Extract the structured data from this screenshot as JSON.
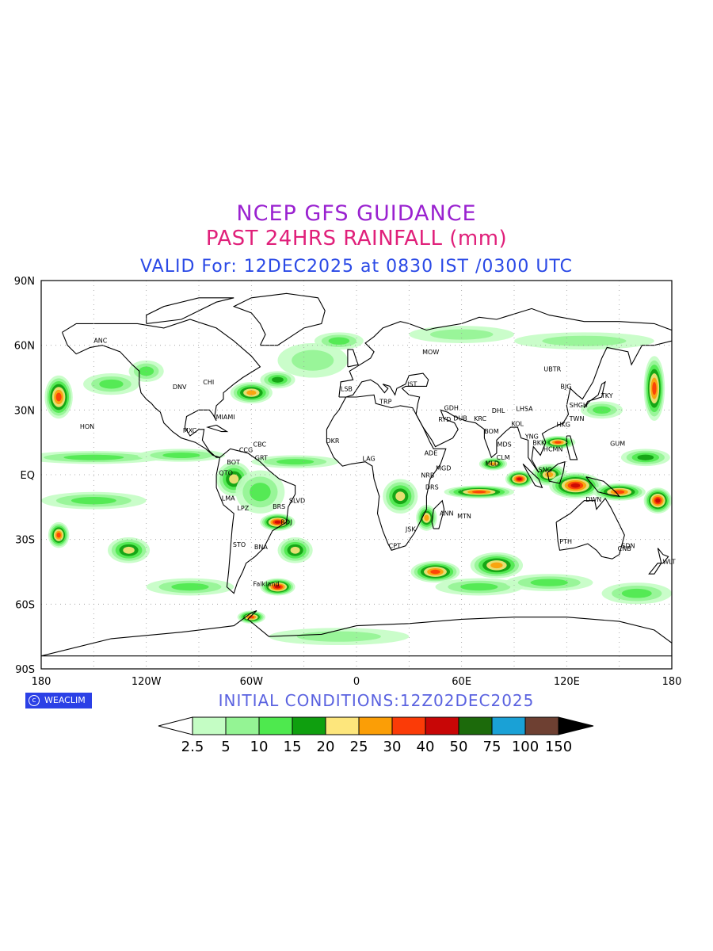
{
  "title": {
    "line1": "NCEP GFS GUIDANCE",
    "line2": "PAST 24HRS RAINFALL (mm)",
    "line3": "VALID For: 12DEC2025 at 0830 IST /0300 UTC"
  },
  "initial_conditions": "INITIAL  CONDITIONS:12Z02DEC2025",
  "badge": {
    "label": "WEACLIM",
    "icon": "copyright-icon"
  },
  "axes": {
    "lat_labels": [
      "90N",
      "60N",
      "30N",
      "EQ",
      "30S",
      "60S",
      "90S"
    ],
    "lat_values": [
      90,
      60,
      30,
      0,
      -30,
      -60,
      -90
    ],
    "lon_labels": [
      "180",
      "120W",
      "60W",
      "0",
      "60E",
      "120E",
      "180"
    ],
    "lon_values": [
      -180,
      -120,
      -60,
      0,
      60,
      120,
      180
    ]
  },
  "legend": {
    "labels": [
      "2.5",
      "5",
      "10",
      "15",
      "20",
      "25",
      "30",
      "40",
      "50",
      "75",
      "100",
      "150"
    ],
    "colors": [
      "#c4fdc4",
      "#94f494",
      "#4ee94e",
      "#0f9f0f",
      "#fde67c",
      "#fb9e06",
      "#fb3b07",
      "#c80606",
      "#1c6a0b",
      "#1aa1d6",
      "#6e4032"
    ],
    "low_color": "#ffffff",
    "high_color": "#000000"
  },
  "stations": [
    {
      "name": "ANC",
      "lon": -150,
      "lat": 61.2
    },
    {
      "name": "HON",
      "lon": -157.9,
      "lat": 21.3
    },
    {
      "name": "MXC",
      "lon": -99.1,
      "lat": 19.4
    },
    {
      "name": "DNV",
      "lon": -105,
      "lat": 39.7
    },
    {
      "name": "CHI",
      "lon": -87.6,
      "lat": 41.9
    },
    {
      "name": "MIAMI",
      "lon": -80.2,
      "lat": 25.8
    },
    {
      "name": "CCG",
      "lon": -67,
      "lat": 10.5
    },
    {
      "name": "CBC",
      "lon": -59,
      "lat": 13
    },
    {
      "name": "BOT",
      "lon": -74,
      "lat": 4.7
    },
    {
      "name": "GRT",
      "lon": -58,
      "lat": 6.8
    },
    {
      "name": "QTO",
      "lon": -78.5,
      "lat": -0.2
    },
    {
      "name": "LMA",
      "lon": -77,
      "lat": -12
    },
    {
      "name": "LPZ",
      "lon": -68.1,
      "lat": -16.5
    },
    {
      "name": "BRS",
      "lon": -47.9,
      "lat": -15.8
    },
    {
      "name": "SLVD",
      "lon": -38.5,
      "lat": -13
    },
    {
      "name": "RDJ",
      "lon": -43.2,
      "lat": -22.9
    },
    {
      "name": "STO",
      "lon": -70.6,
      "lat": -33.4
    },
    {
      "name": "BNA",
      "lon": -58.4,
      "lat": -34.6
    },
    {
      "name": "Falkland",
      "lon": -59,
      "lat": -51.7
    },
    {
      "name": "MOW",
      "lon": 37.6,
      "lat": 55.8
    },
    {
      "name": "LSB",
      "lon": -9.1,
      "lat": 38.7
    },
    {
      "name": "TRP",
      "lon": 13.2,
      "lat": 32.9
    },
    {
      "name": "IST",
      "lon": 29,
      "lat": 41
    },
    {
      "name": "GDH",
      "lon": 50,
      "lat": 30
    },
    {
      "name": "RYD",
      "lon": 46.7,
      "lat": 24.7
    },
    {
      "name": "DUB",
      "lon": 55.3,
      "lat": 25.2
    },
    {
      "name": "KRC",
      "lon": 67,
      "lat": 24.9
    },
    {
      "name": "DHL",
      "lon": 77.2,
      "lat": 28.6
    },
    {
      "name": "KOL",
      "lon": 88.4,
      "lat": 22.6
    },
    {
      "name": "BOM",
      "lon": 72.9,
      "lat": 19.1
    },
    {
      "name": "MDS",
      "lon": 80.3,
      "lat": 13.1
    },
    {
      "name": "CLM",
      "lon": 79.9,
      "lat": 6.9
    },
    {
      "name": "MLD",
      "lon": 73.5,
      "lat": 4.2
    },
    {
      "name": "LHSA",
      "lon": 91.1,
      "lat": 29.6
    },
    {
      "name": "YNG",
      "lon": 96.2,
      "lat": 16.8
    },
    {
      "name": "BKK",
      "lon": 100.5,
      "lat": 13.8
    },
    {
      "name": "HCMN",
      "lon": 106.7,
      "lat": 10.8
    },
    {
      "name": "UBTR",
      "lon": 106.9,
      "lat": 47.9
    },
    {
      "name": "BJG",
      "lon": 116.4,
      "lat": 39.9
    },
    {
      "name": "SHGH",
      "lon": 121.5,
      "lat": 31.2
    },
    {
      "name": "HKG",
      "lon": 114.2,
      "lat": 22.3
    },
    {
      "name": "TWN",
      "lon": 121.5,
      "lat": 25
    },
    {
      "name": "TKY",
      "lon": 139.7,
      "lat": 35.7
    },
    {
      "name": "GUM",
      "lon": 144.8,
      "lat": 13.4
    },
    {
      "name": "SNG",
      "lon": 103.8,
      "lat": 1.3
    },
    {
      "name": "DWN",
      "lon": 130.8,
      "lat": -12.5
    },
    {
      "name": "PTH",
      "lon": 115.9,
      "lat": -32
    },
    {
      "name": "SDN",
      "lon": 151.2,
      "lat": -33.9
    },
    {
      "name": "CNB",
      "lon": 149.1,
      "lat": -35.3
    },
    {
      "name": "WLT",
      "lon": 174.8,
      "lat": -41.3
    },
    {
      "name": "ADE",
      "lon": 38.7,
      "lat": 9
    },
    {
      "name": "MGD",
      "lon": 45.3,
      "lat": 2
    },
    {
      "name": "NRB",
      "lon": 36.8,
      "lat": -1.3
    },
    {
      "name": "DRS",
      "lon": 39.3,
      "lat": -6.8
    },
    {
      "name": "ANN",
      "lon": 47.5,
      "lat": -18.9
    },
    {
      "name": "MTN",
      "lon": 57.5,
      "lat": -20.2
    },
    {
      "name": "JSK",
      "lon": 28,
      "lat": -26.2
    },
    {
      "name": "CPT",
      "lon": 18.4,
      "lat": -33.9
    },
    {
      "name": "DKR",
      "lon": -17.4,
      "lat": 14.7
    },
    {
      "name": "LAG",
      "lon": 3.4,
      "lat": 6.5
    }
  ],
  "rain_areas": [
    {
      "lon": -170,
      "lat": 36,
      "rx": 8,
      "ry": 10,
      "lvl": 6
    },
    {
      "lon": -140,
      "lat": 42,
      "rx": 16,
      "ry": 5,
      "lvl": 2
    },
    {
      "lon": -120,
      "lat": 48,
      "rx": 10,
      "ry": 5,
      "lvl": 2
    },
    {
      "lon": -60,
      "lat": 38,
      "rx": 12,
      "ry": 5,
      "lvl": 5
    },
    {
      "lon": -45,
      "lat": 44,
      "rx": 10,
      "ry": 4,
      "lvl": 3
    },
    {
      "lon": -25,
      "lat": 53,
      "rx": 20,
      "ry": 8,
      "lvl": 1
    },
    {
      "lon": -10,
      "lat": 62,
      "rx": 14,
      "ry": 4,
      "lvl": 2
    },
    {
      "lon": 60,
      "lat": 65,
      "rx": 30,
      "ry": 4,
      "lvl": 1
    },
    {
      "lon": 130,
      "lat": 62,
      "rx": 40,
      "ry": 4,
      "lvl": 1
    },
    {
      "lon": 170,
      "lat": 40,
      "rx": 6,
      "ry": 15,
      "lvl": 6
    },
    {
      "lon": 140,
      "lat": 30,
      "rx": 12,
      "ry": 4,
      "lvl": 2
    },
    {
      "lon": -150,
      "lat": 8,
      "rx": 40,
      "ry": 3,
      "lvl": 2
    },
    {
      "lon": -100,
      "lat": 9,
      "rx": 25,
      "ry": 3,
      "lvl": 2
    },
    {
      "lon": -35,
      "lat": 6,
      "rx": 25,
      "ry": 3,
      "lvl": 2
    },
    {
      "lon": -70,
      "lat": -2,
      "rx": 10,
      "ry": 8,
      "lvl": 4
    },
    {
      "lon": -55,
      "lat": -8,
      "rx": 14,
      "ry": 10,
      "lvl": 2
    },
    {
      "lon": -45,
      "lat": -22,
      "rx": 10,
      "ry": 4,
      "lvl": 7
    },
    {
      "lon": -35,
      "lat": -35,
      "rx": 10,
      "ry": 6,
      "lvl": 4
    },
    {
      "lon": -45,
      "lat": -52,
      "rx": 10,
      "ry": 4,
      "lvl": 7
    },
    {
      "lon": -95,
      "lat": -52,
      "rx": 25,
      "ry": 4,
      "lvl": 2
    },
    {
      "lon": -150,
      "lat": -12,
      "rx": 30,
      "ry": 4,
      "lvl": 2
    },
    {
      "lon": -170,
      "lat": -28,
      "rx": 6,
      "ry": 6,
      "lvl": 6
    },
    {
      "lon": -130,
      "lat": -35,
      "rx": 12,
      "ry": 6,
      "lvl": 4
    },
    {
      "lon": 25,
      "lat": -10,
      "rx": 10,
      "ry": 8,
      "lvl": 4
    },
    {
      "lon": 40,
      "lat": -20,
      "rx": 6,
      "ry": 6,
      "lvl": 5
    },
    {
      "lon": 45,
      "lat": -45,
      "rx": 14,
      "ry": 5,
      "lvl": 6
    },
    {
      "lon": 80,
      "lat": -42,
      "rx": 15,
      "ry": 6,
      "lvl": 5
    },
    {
      "lon": 70,
      "lat": -52,
      "rx": 25,
      "ry": 4,
      "lvl": 2
    },
    {
      "lon": 110,
      "lat": -50,
      "rx": 25,
      "ry": 4,
      "lvl": 2
    },
    {
      "lon": 70,
      "lat": -8,
      "rx": 20,
      "ry": 3,
      "lvl": 6
    },
    {
      "lon": 93,
      "lat": -2,
      "rx": 8,
      "ry": 4,
      "lvl": 7
    },
    {
      "lon": 78,
      "lat": 5,
      "rx": 8,
      "ry": 3,
      "lvl": 5
    },
    {
      "lon": 110,
      "lat": 0,
      "rx": 10,
      "ry": 5,
      "lvl": 5
    },
    {
      "lon": 125,
      "lat": -5,
      "rx": 15,
      "ry": 6,
      "lvl": 7
    },
    {
      "lon": 150,
      "lat": -8,
      "rx": 15,
      "ry": 4,
      "lvl": 6
    },
    {
      "lon": 172,
      "lat": -12,
      "rx": 8,
      "ry": 6,
      "lvl": 7
    },
    {
      "lon": 115,
      "lat": 15,
      "rx": 10,
      "ry": 3,
      "lvl": 6
    },
    {
      "lon": 165,
      "lat": 8,
      "rx": 14,
      "ry": 4,
      "lvl": 3
    },
    {
      "lon": -10,
      "lat": -75,
      "rx": 40,
      "ry": 4,
      "lvl": 1
    },
    {
      "lon": -60,
      "lat": -66,
      "rx": 8,
      "ry": 3,
      "lvl": 6
    },
    {
      "lon": 160,
      "lat": -55,
      "rx": 20,
      "ry": 5,
      "lvl": 2
    }
  ]
}
